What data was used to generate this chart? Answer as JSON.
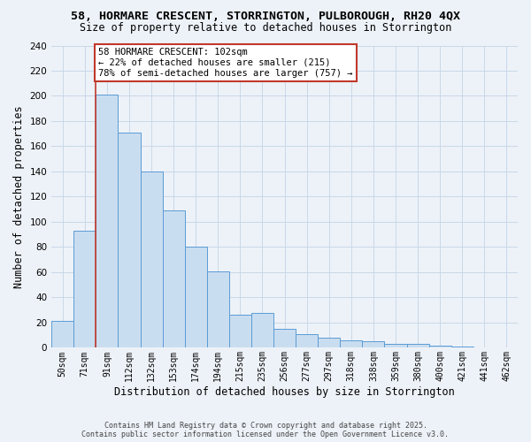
{
  "title_line1": "58, HORMARE CRESCENT, STORRINGTON, PULBOROUGH, RH20 4QX",
  "title_line2": "Size of property relative to detached houses in Storrington",
  "xlabel": "Distribution of detached houses by size in Storrington",
  "ylabel": "Number of detached properties",
  "bar_labels": [
    "50sqm",
    "71sqm",
    "91sqm",
    "112sqm",
    "132sqm",
    "153sqm",
    "174sqm",
    "194sqm",
    "215sqm",
    "235sqm",
    "256sqm",
    "277sqm",
    "297sqm",
    "318sqm",
    "338sqm",
    "359sqm",
    "380sqm",
    "400sqm",
    "421sqm",
    "441sqm",
    "462sqm"
  ],
  "bar_values": [
    21,
    93,
    201,
    171,
    140,
    109,
    80,
    61,
    26,
    28,
    15,
    11,
    8,
    6,
    5,
    3,
    3,
    2,
    1,
    0,
    0
  ],
  "bar_color": "#c9ddf0",
  "bar_edge_color": "#5b9bd5",
  "vline_x_index": 2,
  "vline_color": "#c0392b",
  "annotation_text": "58 HORMARE CRESCENT: 102sqm\n← 22% of detached houses are smaller (215)\n78% of semi-detached houses are larger (757) →",
  "annotation_box_color": "white",
  "annotation_box_edge": "#c0392b",
  "annotation_fontsize": 7.5,
  "ylim": [
    0,
    240
  ],
  "yticks": [
    0,
    20,
    40,
    60,
    80,
    100,
    120,
    140,
    160,
    180,
    200,
    220,
    240
  ],
  "grid_color": "#c8d8e8",
  "footer_line1": "Contains HM Land Registry data © Crown copyright and database right 2025.",
  "footer_line2": "Contains public sector information licensed under the Open Government Licence v3.0.",
  "bg_color": "#edf2f8",
  "title1_fontsize": 9.5,
  "title2_fontsize": 8.5,
  "xlabel_fontsize": 8.5,
  "ylabel_fontsize": 8.5,
  "xtick_fontsize": 7.0,
  "ytick_fontsize": 7.5,
  "footer_fontsize": 6.0
}
